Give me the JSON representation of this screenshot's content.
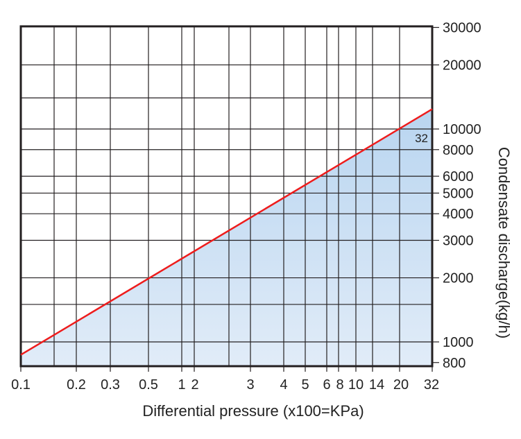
{
  "chart_data": {
    "type": "area",
    "xlabel": "Differential pressure (x100=KPa)",
    "ylabel": "Condensate discharge(kg/h)",
    "x_tick_labels": [
      "0.1",
      "0.2",
      "0.3",
      "0.5",
      "1",
      "2",
      "3",
      "4",
      "5",
      "6",
      "8",
      "10",
      "14",
      "20",
      "32"
    ],
    "y_scale": "log",
    "y_axis_side": "right",
    "y_tick_labels": [
      30000,
      20000,
      10000,
      8000,
      6000,
      5000,
      4000,
      3000,
      2000,
      1000,
      800
    ],
    "y_gridlines": [
      20000,
      14000,
      10000,
      8000,
      6000,
      5000,
      4000,
      3000,
      2000,
      1500,
      1000
    ],
    "ylim": [
      780,
      30300
    ],
    "grid": true,
    "series": [
      {
        "label": "32",
        "x": [
          0.1,
          32
        ],
        "y": [
          870,
          12400
        ],
        "color": "#ee1c1c"
      }
    ],
    "fill_colors": [
      "#b9d5f0",
      "#e1ecf8"
    ]
  }
}
